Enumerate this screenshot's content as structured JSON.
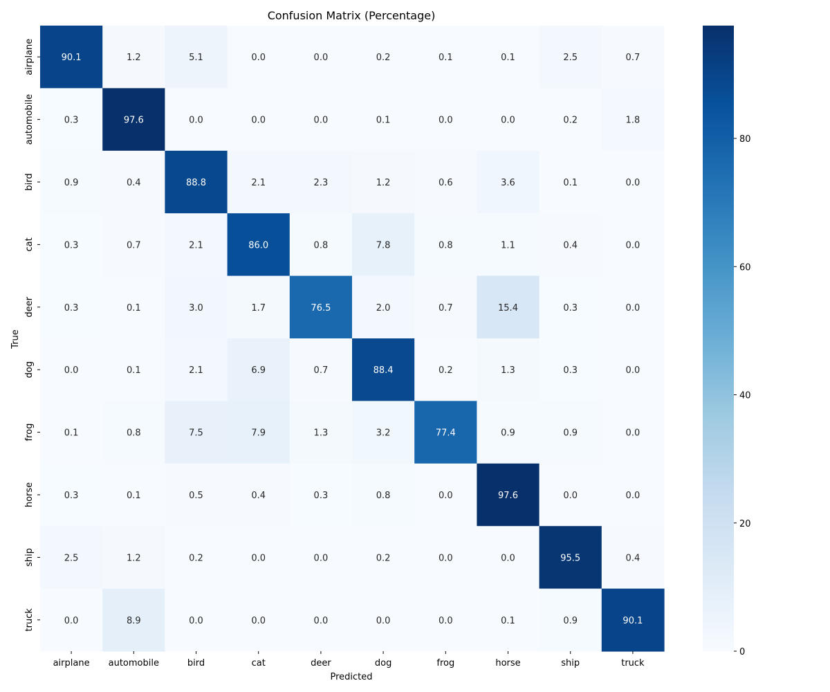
{
  "chart_data": {
    "type": "heatmap",
    "title": "Confusion Matrix (Percentage)",
    "xlabel": "Predicted",
    "ylabel": "True",
    "x_labels": [
      "airplane",
      "automobile",
      "bird",
      "cat",
      "deer",
      "dog",
      "frog",
      "horse",
      "ship",
      "truck"
    ],
    "y_labels": [
      "airplane",
      "automobile",
      "bird",
      "cat",
      "deer",
      "dog",
      "frog",
      "horse",
      "ship",
      "truck"
    ],
    "values": [
      [
        90.1,
        1.2,
        5.1,
        0.0,
        0.0,
        0.2,
        0.1,
        0.1,
        2.5,
        0.7
      ],
      [
        0.3,
        97.6,
        0.0,
        0.0,
        0.0,
        0.1,
        0.0,
        0.0,
        0.2,
        1.8
      ],
      [
        0.9,
        0.4,
        88.8,
        2.1,
        2.3,
        1.2,
        0.6,
        3.6,
        0.1,
        0.0
      ],
      [
        0.3,
        0.7,
        2.1,
        86.0,
        0.8,
        7.8,
        0.8,
        1.1,
        0.4,
        0.0
      ],
      [
        0.3,
        0.1,
        3.0,
        1.7,
        76.5,
        2.0,
        0.7,
        15.4,
        0.3,
        0.0
      ],
      [
        0.0,
        0.1,
        2.1,
        6.9,
        0.7,
        88.4,
        0.2,
        1.3,
        0.3,
        0.0
      ],
      [
        0.1,
        0.8,
        7.5,
        7.9,
        1.3,
        3.2,
        77.4,
        0.9,
        0.9,
        0.0
      ],
      [
        0.3,
        0.1,
        0.5,
        0.4,
        0.3,
        0.8,
        0.0,
        97.6,
        0.0,
        0.0
      ],
      [
        2.5,
        1.2,
        0.2,
        0.0,
        0.0,
        0.2,
        0.0,
        0.0,
        95.5,
        0.4
      ],
      [
        0.0,
        8.9,
        0.0,
        0.0,
        0.0,
        0.0,
        0.0,
        0.1,
        0.9,
        90.1
      ]
    ],
    "value_format_decimals": 1,
    "colormap": "Blues",
    "colormap_stops": [
      "#f7fbff",
      "#deebf7",
      "#c6dbef",
      "#9ecae1",
      "#6baed6",
      "#4292c6",
      "#2171b5",
      "#08519c",
      "#08306b"
    ],
    "colorbar": {
      "range": [
        0,
        97.6
      ],
      "ticks": [
        0,
        20,
        40,
        60,
        80
      ],
      "tick_labels": [
        "0",
        "20",
        "40",
        "60",
        "80"
      ]
    },
    "grid": false
  }
}
